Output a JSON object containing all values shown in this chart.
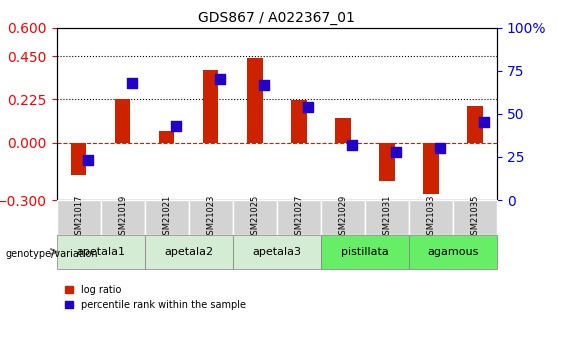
{
  "title": "GDS867 / A022367_01",
  "samples": [
    "GSM21017",
    "GSM21019",
    "GSM21021",
    "GSM21023",
    "GSM21025",
    "GSM21027",
    "GSM21029",
    "GSM21031",
    "GSM21033",
    "GSM21035"
  ],
  "log_ratio": [
    -0.17,
    0.23,
    0.06,
    0.38,
    0.44,
    0.22,
    0.13,
    -0.2,
    -0.27,
    0.19
  ],
  "percentile_rank": [
    23,
    68,
    43,
    70,
    67,
    54,
    32,
    28,
    30,
    45
  ],
  "ylim_left": [
    -0.3,
    0.6
  ],
  "ylim_right": [
    0,
    100
  ],
  "yticks_left": [
    -0.3,
    0,
    0.225,
    0.45,
    0.6
  ],
  "yticks_right": [
    0,
    25,
    50,
    75,
    100
  ],
  "hlines": [
    0.225,
    0.45
  ],
  "bar_color": "#cc2200",
  "dot_color": "#2200cc",
  "zero_line_color": "#cc2200",
  "background_color": "#ffffff",
  "plot_bg_color": "#ffffff",
  "groups": [
    {
      "label": "apetala1",
      "start": 0,
      "end": 2,
      "color": "#d4ecd4"
    },
    {
      "label": "apetala2",
      "start": 2,
      "end": 4,
      "color": "#d4ecd4"
    },
    {
      "label": "apetala3",
      "start": 4,
      "end": 6,
      "color": "#d4ecd4"
    },
    {
      "label": "pistillata",
      "start": 6,
      "end": 8,
      "color": "#66ee66"
    },
    {
      "label": "agamous",
      "start": 8,
      "end": 10,
      "color": "#66ee66"
    }
  ],
  "legend_log_ratio": "log ratio",
  "legend_percentile": "percentile rank within the sample",
  "genotype_label": "genotype/variation",
  "bar_width": 0.35,
  "dot_size": 60
}
